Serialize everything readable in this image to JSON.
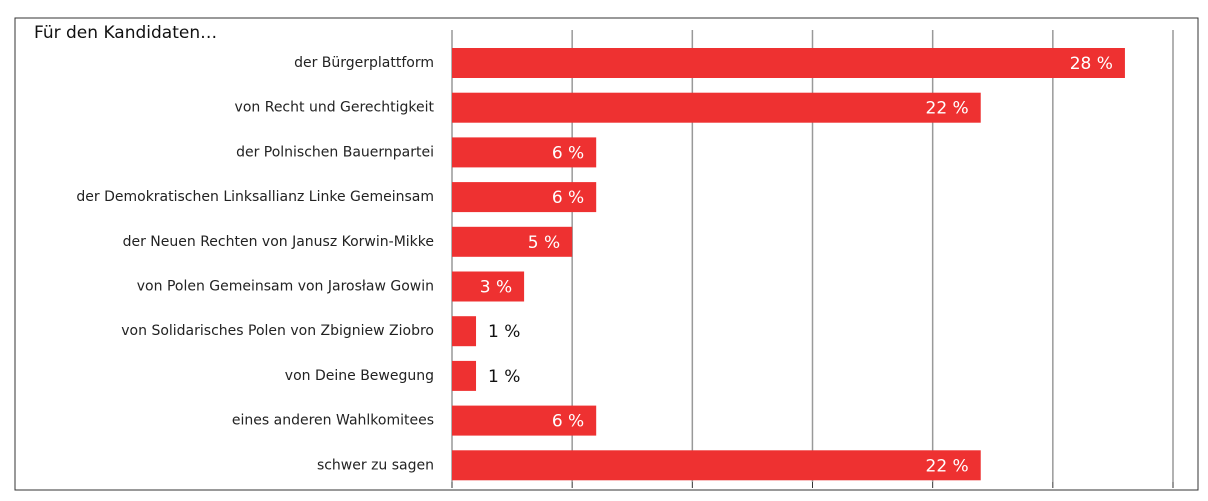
{
  "chart_data": {
    "type": "bar",
    "orientation": "horizontal",
    "title": "Für den Kandidaten…",
    "categories": [
      "der Bürgerplattform",
      "von Recht und Gerechtigkeit",
      "der Polnischen Bauernpartei",
      "der Demokratischen Linksallianz Linke Gemeinsam",
      "der Neuen Rechten von Janusz Korwin-Mikke",
      "von Polen Gemeinsam von Jarosław Gowin",
      "von Solidarisches Polen von Zbigniew Ziobro",
      "von Deine Bewegung",
      "eines anderen Wahlkomitees",
      "schwer zu sagen"
    ],
    "values": [
      28,
      22,
      6,
      6,
      5,
      3,
      1,
      1,
      6,
      22
    ],
    "value_labels": [
      "28 %",
      "22 %",
      "6 %",
      "6 %",
      "5 %",
      "3 %",
      "1 %",
      "1 %",
      "6 %",
      "22 %"
    ],
    "color": "#ee3131",
    "xlim": [
      0,
      30
    ],
    "xticks": [
      0,
      5,
      10,
      15,
      20,
      25,
      30
    ],
    "grid": true
  }
}
